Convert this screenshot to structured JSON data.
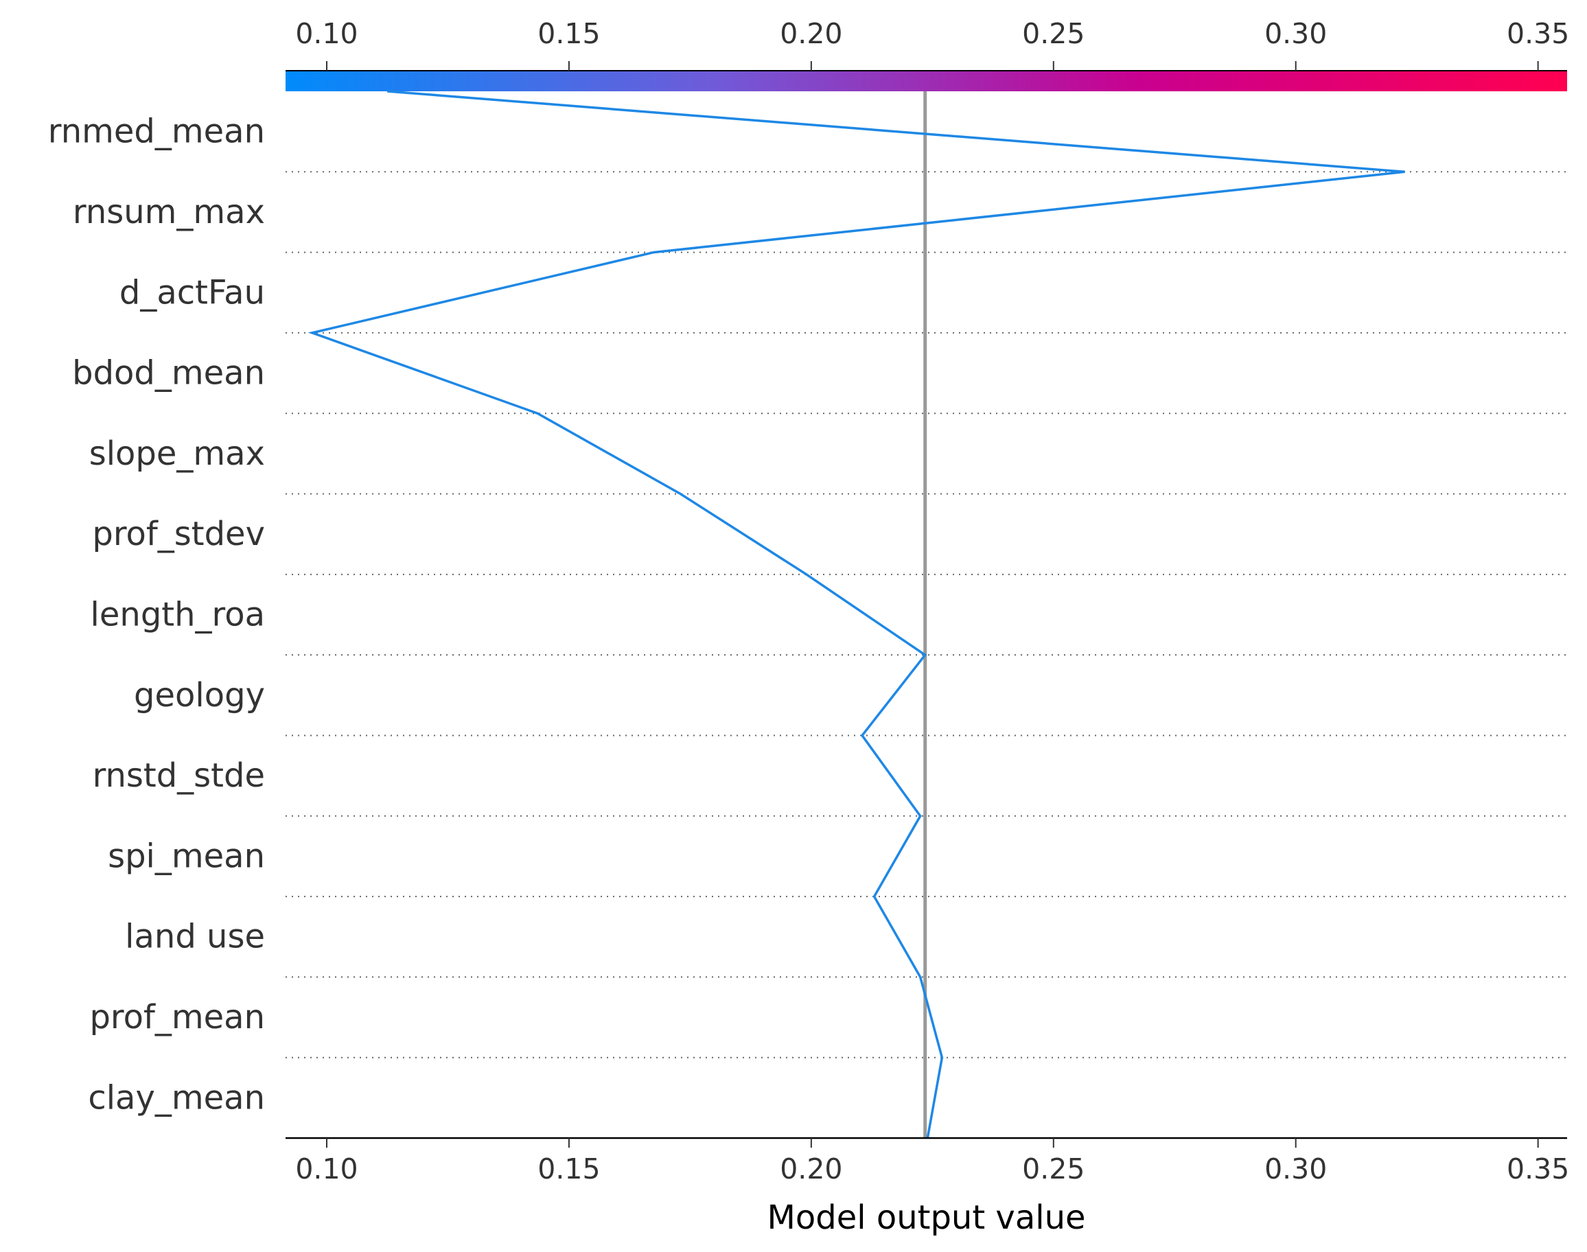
{
  "chart_data": {
    "type": "line",
    "subtype": "shap-decision-plot",
    "title": "",
    "xlabel": "Model output value",
    "ylabel": "",
    "xlim": [
      0.0915,
      0.356
    ],
    "base_value": 0.2235,
    "features": [
      "rnmed_mean",
      "rnsum_max",
      "d_actFau",
      "bdod_mean",
      "slope_max",
      "prof_stdev",
      "length_roa",
      "geology",
      "rnstd_stde",
      "spi_mean",
      "land use",
      "prof_mean",
      "clay_mean"
    ],
    "x_ticks": [
      0.1,
      0.15,
      0.2,
      0.25,
      0.3,
      0.35
    ],
    "x_tick_labels": [
      "0.10",
      "0.15",
      "0.20",
      "0.25",
      "0.30",
      "0.35"
    ],
    "series": [
      {
        "values": [
          0.1125,
          0.3225,
          0.1675,
          0.097,
          0.1435,
          0.173,
          0.199,
          0.2235,
          0.2105,
          0.2225,
          0.213,
          0.2225,
          0.227,
          0.224
        ]
      }
    ],
    "colorbar": {
      "colors": [
        "#008bfb",
        "#6f5bd9",
        "#c9008f",
        "#ff0051"
      ],
      "range": [
        0.0915,
        0.356
      ]
    },
    "colors": {
      "line": "#1e88e5",
      "base_line": "#999999",
      "grid": "#666666"
    },
    "grid": true
  }
}
